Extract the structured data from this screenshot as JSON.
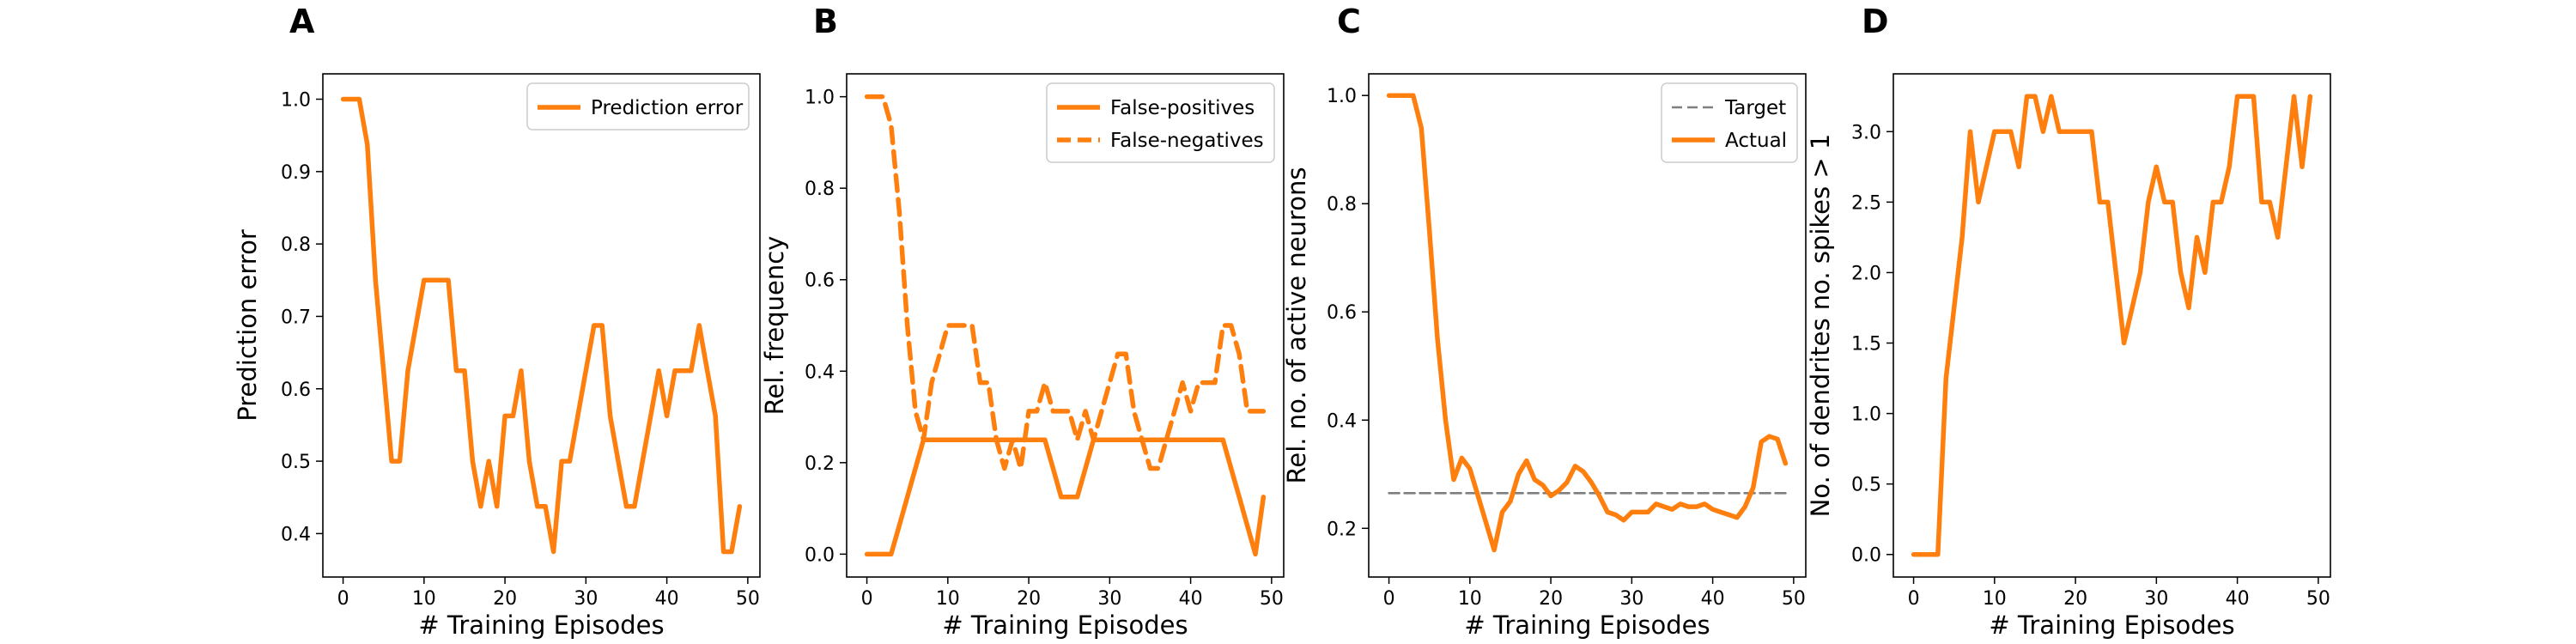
{
  "chart_data": [
    {
      "panel": "A",
      "type": "line",
      "xlabel": "# Training Episodes",
      "ylabel": "Prediction error",
      "xlim": [
        -2.5,
        51.5
      ],
      "ylim": [
        0.34,
        1.035
      ],
      "xticks": [
        0,
        10,
        20,
        30,
        40,
        50
      ],
      "yticks": [
        0.4,
        0.5,
        0.6,
        0.7,
        0.8,
        0.9,
        1.0
      ],
      "ytick_labels": [
        "0.4",
        "0.5",
        "0.6",
        "0.7",
        "0.8",
        "0.9",
        "1.0"
      ],
      "legend_position": "top-right",
      "x": [
        0,
        1,
        2,
        3,
        4,
        5,
        6,
        7,
        8,
        9,
        10,
        11,
        12,
        13,
        14,
        15,
        16,
        17,
        18,
        19,
        20,
        21,
        22,
        23,
        24,
        25,
        26,
        27,
        28,
        29,
        30,
        31,
        32,
        33,
        34,
        35,
        36,
        37,
        38,
        39,
        40,
        41,
        42,
        43,
        44,
        45,
        46,
        47,
        48,
        49
      ],
      "series": [
        {
          "name": "Prediction error",
          "color": "#ff7f0e",
          "dash": "solid",
          "values": [
            1.0,
            1.0,
            1.0,
            0.9375,
            0.75,
            0.625,
            0.5,
            0.5,
            0.625,
            0.6875,
            0.75,
            0.75,
            0.75,
            0.75,
            0.625,
            0.625,
            0.5,
            0.4375,
            0.5,
            0.4375,
            0.5625,
            0.5625,
            0.625,
            0.5,
            0.4375,
            0.4375,
            0.375,
            0.5,
            0.5,
            0.5625,
            0.625,
            0.6875,
            0.6875,
            0.5625,
            0.5,
            0.4375,
            0.4375,
            0.5,
            0.5625,
            0.625,
            0.5625,
            0.625,
            0.625,
            0.625,
            0.6875,
            0.625,
            0.5625,
            0.375,
            0.375,
            0.4375
          ]
        }
      ]
    },
    {
      "panel": "B",
      "type": "line",
      "xlabel": "# Training Episodes",
      "ylabel": "Rel. frequency",
      "xlim": [
        -2.5,
        51.5
      ],
      "ylim": [
        -0.05,
        1.05
      ],
      "xticks": [
        0,
        10,
        20,
        30,
        40,
        50
      ],
      "yticks": [
        0.0,
        0.2,
        0.4,
        0.6,
        0.8,
        1.0
      ],
      "ytick_labels": [
        "0.0",
        "0.2",
        "0.4",
        "0.6",
        "0.8",
        "1.0"
      ],
      "legend_position": "top-right",
      "x": [
        0,
        1,
        2,
        3,
        4,
        5,
        6,
        7,
        8,
        9,
        10,
        11,
        12,
        13,
        14,
        15,
        16,
        17,
        18,
        19,
        20,
        21,
        22,
        23,
        24,
        25,
        26,
        27,
        28,
        29,
        30,
        31,
        32,
        33,
        34,
        35,
        36,
        37,
        38,
        39,
        40,
        41,
        42,
        43,
        44,
        45,
        46,
        47,
        48,
        49
      ],
      "series": [
        {
          "name": "False-positives",
          "color": "#ff7f0e",
          "dash": "solid",
          "values": [
            0,
            0,
            0,
            0,
            0.0625,
            0.125,
            0.1875,
            0.25,
            0.25,
            0.25,
            0.25,
            0.25,
            0.25,
            0.25,
            0.25,
            0.25,
            0.25,
            0.25,
            0.25,
            0.25,
            0.25,
            0.25,
            0.25,
            0.1875,
            0.125,
            0.125,
            0.125,
            0.1875,
            0.25,
            0.25,
            0.25,
            0.25,
            0.25,
            0.25,
            0.25,
            0.25,
            0.25,
            0.25,
            0.25,
            0.25,
            0.25,
            0.25,
            0.25,
            0.25,
            0.25,
            0.1875,
            0.125,
            0.0625,
            0,
            0.125
          ]
        },
        {
          "name": "False-negatives",
          "color": "#ff7f0e",
          "dash": "dashed",
          "values": [
            1.0,
            1.0,
            1.0,
            0.9375,
            0.75,
            0.5,
            0.3125,
            0.25,
            0.375,
            0.4375,
            0.5,
            0.5,
            0.5,
            0.5,
            0.375,
            0.375,
            0.25,
            0.1875,
            0.25,
            0.1875,
            0.3125,
            0.3125,
            0.375,
            0.3125,
            0.3125,
            0.3125,
            0.25,
            0.3125,
            0.25,
            0.3125,
            0.375,
            0.4375,
            0.4375,
            0.3125,
            0.25,
            0.1875,
            0.1875,
            0.25,
            0.3125,
            0.375,
            0.3125,
            0.375,
            0.375,
            0.375,
            0.5,
            0.5,
            0.4375,
            0.3125,
            0.3125,
            0.3125
          ]
        }
      ]
    },
    {
      "panel": "C",
      "type": "line",
      "xlabel": "# Training Episodes",
      "ylabel": "Rel. no. of active neurons",
      "xlim": [
        -2.5,
        51.5
      ],
      "ylim": [
        0.11,
        1.04
      ],
      "xticks": [
        0,
        10,
        20,
        30,
        40,
        50
      ],
      "yticks": [
        0.2,
        0.4,
        0.6,
        0.8,
        1.0
      ],
      "ytick_labels": [
        "0.2",
        "0.4",
        "0.6",
        "0.8",
        "1.0"
      ],
      "legend_position": "top-right",
      "x": [
        0,
        1,
        2,
        3,
        4,
        5,
        6,
        7,
        8,
        9,
        10,
        11,
        12,
        13,
        14,
        15,
        16,
        17,
        18,
        19,
        20,
        21,
        22,
        23,
        24,
        25,
        26,
        27,
        28,
        29,
        30,
        31,
        32,
        33,
        34,
        35,
        36,
        37,
        38,
        39,
        40,
        41,
        42,
        43,
        44,
        45,
        46,
        47,
        48,
        49
      ],
      "series": [
        {
          "name": "Target",
          "color": "#7f7f7f",
          "dash": "dashed",
          "values": [
            0.265,
            0.265,
            0.265,
            0.265,
            0.265,
            0.265,
            0.265,
            0.265,
            0.265,
            0.265,
            0.265,
            0.265,
            0.265,
            0.265,
            0.265,
            0.265,
            0.265,
            0.265,
            0.265,
            0.265,
            0.265,
            0.265,
            0.265,
            0.265,
            0.265,
            0.265,
            0.265,
            0.265,
            0.265,
            0.265,
            0.265,
            0.265,
            0.265,
            0.265,
            0.265,
            0.265,
            0.265,
            0.265,
            0.265,
            0.265,
            0.265,
            0.265,
            0.265,
            0.265,
            0.265,
            0.265,
            0.265,
            0.265,
            0.265,
            0.265
          ]
        },
        {
          "name": "Actual",
          "color": "#ff7f0e",
          "dash": "solid",
          "values": [
            1.0,
            1.0,
            1.0,
            1.0,
            0.94,
            0.75,
            0.55,
            0.4,
            0.29,
            0.33,
            0.31,
            0.26,
            0.21,
            0.16,
            0.23,
            0.25,
            0.3,
            0.325,
            0.29,
            0.28,
            0.26,
            0.27,
            0.285,
            0.315,
            0.305,
            0.285,
            0.26,
            0.23,
            0.225,
            0.215,
            0.23,
            0.23,
            0.23,
            0.245,
            0.24,
            0.235,
            0.245,
            0.24,
            0.24,
            0.245,
            0.235,
            0.23,
            0.225,
            0.22,
            0.24,
            0.275,
            0.36,
            0.37,
            0.365,
            0.32
          ]
        }
      ]
    },
    {
      "panel": "D",
      "type": "line",
      "xlabel": "# Training Episodes",
      "ylabel": "No. of dendrites no. spikes > 1",
      "xlim": [
        -2.5,
        51.5
      ],
      "ylim": [
        -0.16,
        3.41
      ],
      "xticks": [
        0,
        10,
        20,
        30,
        40,
        50
      ],
      "yticks": [
        0.0,
        0.5,
        1.0,
        1.5,
        2.0,
        2.5,
        3.0
      ],
      "ytick_labels": [
        "0.0",
        "0.5",
        "1.0",
        "1.5",
        "2.0",
        "2.5",
        "3.0"
      ],
      "legend_position": "none",
      "x": [
        0,
        1,
        2,
        3,
        4,
        5,
        6,
        7,
        8,
        9,
        10,
        11,
        12,
        13,
        14,
        15,
        16,
        17,
        18,
        19,
        20,
        21,
        22,
        23,
        24,
        25,
        26,
        27,
        28,
        29,
        30,
        31,
        32,
        33,
        34,
        35,
        36,
        37,
        38,
        39,
        40,
        41,
        42,
        43,
        44,
        45,
        46,
        47,
        48,
        49
      ],
      "series": [
        {
          "name": "",
          "color": "#ff7f0e",
          "dash": "solid",
          "values": [
            0,
            0,
            0,
            0,
            1.25,
            1.75,
            2.25,
            3.0,
            2.5,
            2.75,
            3.0,
            3.0,
            3.0,
            2.75,
            3.25,
            3.25,
            3.0,
            3.25,
            3.0,
            3.0,
            3.0,
            3.0,
            3.0,
            2.5,
            2.5,
            2.0,
            1.5,
            1.75,
            2.0,
            2.5,
            2.75,
            2.5,
            2.5,
            2.0,
            1.75,
            2.25,
            2.0,
            2.5,
            2.5,
            2.75,
            3.25,
            3.25,
            3.25,
            2.5,
            2.5,
            2.25,
            2.75,
            3.25,
            2.75,
            3.25
          ]
        }
      ]
    }
  ]
}
